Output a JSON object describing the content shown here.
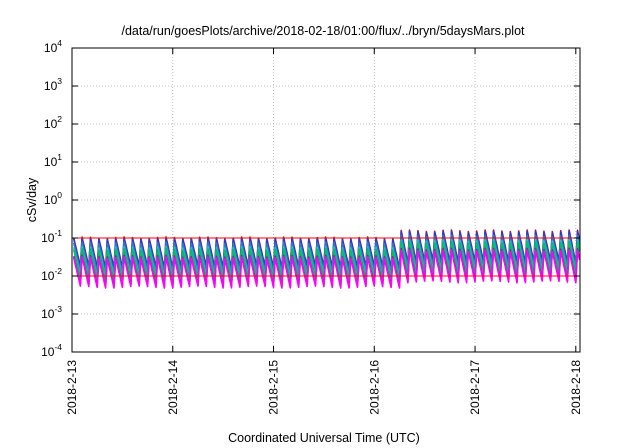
{
  "chart_data": {
    "type": "line",
    "title": "/data/run/goesPlots/archive/2018-02-18/01:00/flux/../bryn/5daysMars.plot",
    "xlabel": "Coordinated Universal Time (UTC)",
    "ylabel": "cSv/day",
    "yscale": "log",
    "ylim": [
      0.0001,
      10000
    ],
    "xlim": [
      "2018-02-13T00:00",
      "2018-02-18T01:00"
    ],
    "grid": true,
    "legend": "none",
    "y_ticks": [
      {
        "base": "10",
        "exp": "4"
      },
      {
        "base": "10",
        "exp": "3"
      },
      {
        "base": "10",
        "exp": "2"
      },
      {
        "base": "10",
        "exp": "1"
      },
      {
        "base": "10",
        "exp": "0"
      },
      {
        "base": "10",
        "exp": "-1"
      },
      {
        "base": "10",
        "exp": "-2"
      },
      {
        "base": "10",
        "exp": "-3"
      },
      {
        "base": "10",
        "exp": "-4"
      }
    ],
    "x_ticks": [
      "2018-2-13",
      "2018-2-14",
      "2018-2-15",
      "2018-2-16",
      "2018-2-17",
      "2018-2-18"
    ],
    "pattern": {
      "cycle_hours": 2.0,
      "quiet_peak": 0.095,
      "quiet_trough": 0.016,
      "elevated_from": "2018-02-16T06:00",
      "elevated_peak": 0.145,
      "elevated_trough": 0.022
    },
    "series": [
      {
        "color": "#ff0000",
        "factor": 1.07
      },
      {
        "color": "#1f3fd8",
        "factor": 1.0
      },
      {
        "color": "#2a7cc9",
        "factor": 0.78
      },
      {
        "color": "#18c4c4",
        "factor": 0.6
      },
      {
        "color": "#00c060",
        "factor": 0.52
      },
      {
        "color": "#7a2a9a",
        "factor": 0.35
      },
      {
        "color": "#ff00ff",
        "factor": 0.32
      }
    ],
    "reference_lines": [
      {
        "value": 0.1,
        "color": "#ff0000"
      },
      {
        "value": 0.01,
        "color": "#ff0000"
      }
    ]
  }
}
